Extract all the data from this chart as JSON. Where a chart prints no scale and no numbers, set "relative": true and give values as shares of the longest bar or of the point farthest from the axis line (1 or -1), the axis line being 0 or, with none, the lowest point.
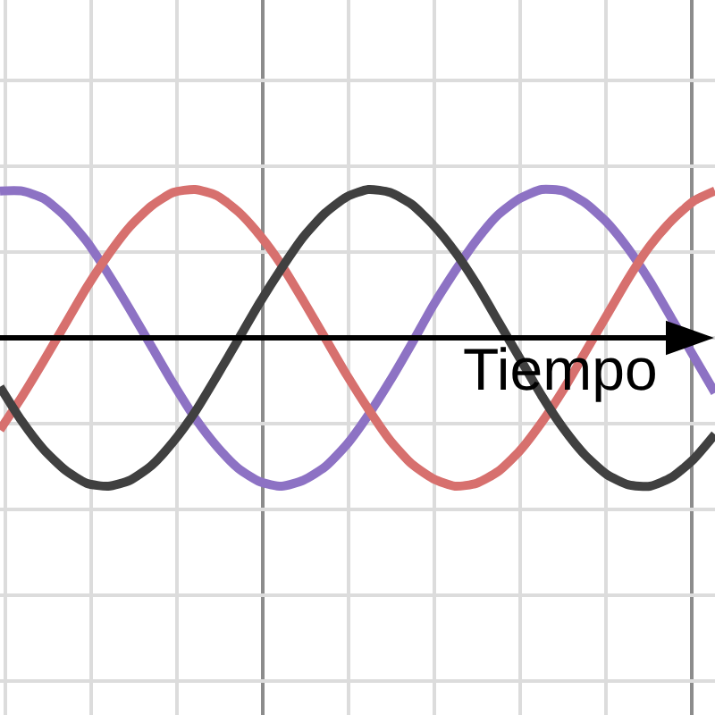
{
  "chart_data": {
    "type": "line",
    "relative": true,
    "xlabel": "Tiempo",
    "categories": [
      null,
      null,
      null,
      null,
      null,
      null,
      null,
      null,
      null,
      null,
      null,
      null,
      null,
      null,
      null,
      null,
      null,
      null,
      null,
      null,
      null,
      null,
      null,
      null,
      null,
      null,
      null,
      null,
      null,
      null,
      null,
      null,
      null,
      null
    ],
    "series": [
      {
        "color": "#8d72c4",
        "values": [
          0.99,
          0.99,
          0.94,
          0.82,
          0.65,
          0.43,
          0.19,
          -0.06,
          -0.31,
          -0.54,
          -0.73,
          -0.88,
          -0.97,
          -1.0,
          -0.96,
          -0.87,
          -0.72,
          -0.52,
          -0.29,
          -0.04,
          0.22,
          0.45,
          0.66,
          0.83,
          0.94,
          1.0,
          0.99,
          0.91,
          0.78,
          0.6,
          0.38,
          0.13,
          -0.12,
          -0.37
        ]
      },
      {
        "color": "#d7706e",
        "values": [
          -0.62,
          -0.4,
          -0.16,
          0.09,
          0.34,
          0.56,
          0.75,
          0.89,
          0.98,
          1.0,
          0.96,
          0.85,
          0.69,
          0.49,
          0.25,
          0.0,
          -0.25,
          -0.48,
          -0.69,
          -0.85,
          -0.95,
          -1.0,
          -0.98,
          -0.9,
          -0.76,
          -0.57,
          -0.35,
          -0.1,
          0.15,
          0.4,
          0.62,
          0.79,
          0.92,
          0.99
        ]
      },
      {
        "color": "#404040",
        "values": [
          -0.33,
          -0.56,
          -0.75,
          -0.89,
          -0.98,
          -1.0,
          -0.96,
          -0.86,
          -0.7,
          -0.5,
          -0.26,
          -0.01,
          0.24,
          0.47,
          0.68,
          0.84,
          0.95,
          1.0,
          0.98,
          0.9,
          0.76,
          0.58,
          0.36,
          0.11,
          -0.14,
          -0.39,
          -0.61,
          -0.79,
          -0.92,
          -0.99,
          -1.0,
          -0.94,
          -0.82,
          -0.65
        ]
      }
    ],
    "ref_lines": [
      {
        "axis": "y",
        "value": 0,
        "color": "#000000"
      }
    ],
    "grid": true,
    "line_style": "solid"
  }
}
